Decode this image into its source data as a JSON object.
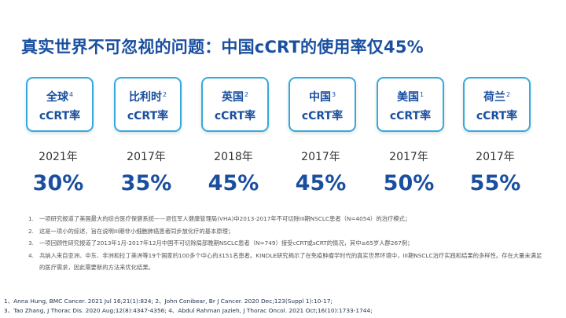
{
  "title": "真实世界不可忽视的问题：中国cCRT的使用率仅45%",
  "cards": [
    {
      "region": "全球",
      "ref": "4",
      "label": "cCRT率",
      "year": "2021年",
      "percent": "30%"
    },
    {
      "region": "比利时",
      "ref": "2",
      "label": "cCRT率",
      "year": "2017年",
      "percent": "35%"
    },
    {
      "region": "英国",
      "ref": "2",
      "label": "cCRT率",
      "year": "2018年",
      "percent": "45%"
    },
    {
      "region": "中国",
      "ref": "3",
      "label": "cCRT率",
      "year": "2017年",
      "percent": "45%"
    },
    {
      "region": "美国",
      "ref": "1",
      "label": "cCRT率",
      "year": "2017年",
      "percent": "50%"
    },
    {
      "region": "荷兰",
      "ref": "2",
      "label": "cCRT率",
      "year": "2017年",
      "percent": "55%"
    }
  ],
  "notes": [
    {
      "num": "1.",
      "text": "一项研究报道了美国最大的综合医疗保健系统——退伍军人健康管理局(VHA)中2013-2017年不可切除III期NSCLC患者（N=4054）的治疗模式；"
    },
    {
      "num": "2.",
      "text": "这是一项小的综述，旨在说明III期非小细胞肺癌患者同步放化疗的基本原理；"
    },
    {
      "num": "3.",
      "text": "一项回顾性研究报道了2013年1月-2017年12月中国不可切除局部晚期NSCLC患者（N=749）接受cCRT或sCRT的情况，其中≥65岁人群267例；"
    },
    {
      "num": "4.",
      "text": "共纳入来自亚洲、中东、非洲和拉丁美洲等19个国家的100多个中心的3151名患者。KINDLE研究揭示了在免疫肿瘤学时代的真实世界环境中，III期NSCLC治疗实践和结果的多样性。存在大量未满足的医疗需求，因此需要新的方法来优化结果。"
    }
  ],
  "references": [
    "1、Anna Hung, BMC Cancer. 2021 Jul 16;21(1):824; 2、John Conibear, Br J Cancer. 2020 Dec;123(Suppl 1):10-17;",
    "3、Tao Zhang, J Thorac Dis. 2020 Aug;12(8):4347-4356; 4、Abdul Rahman Jazieh, J Thorac Oncol. 2021 Oct;16(10):1733-1744;"
  ],
  "colors": {
    "title": "#1a4fa0",
    "card_border": "#34aadc",
    "value": "#1a4fa0"
  }
}
